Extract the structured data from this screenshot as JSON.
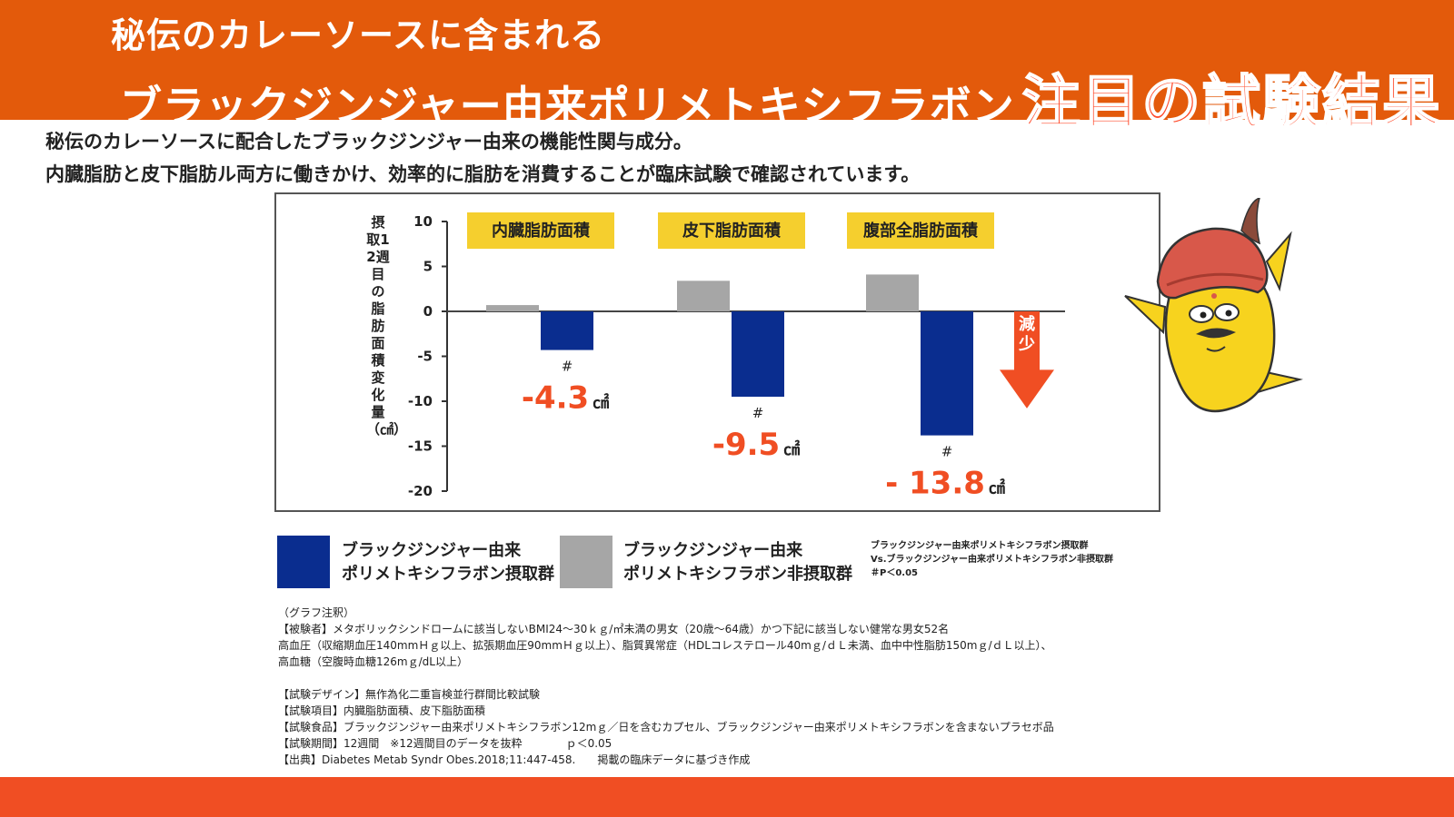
{
  "header": {
    "line1": "秘伝のカレーソースに含まれる",
    "line2": "ブラックジンジャー由来ポリメトキシフラボン",
    "highlight": "注目の試験結果"
  },
  "intro": {
    "line1": "秘伝のカレーソースに配合したブラックジンジャー由来の機能性関与成分。",
    "line2": "内臓脂肪と皮下脂肪ル両方に働きかけ、効率的に脂肪を消費することが臨床試験で確認されています。"
  },
  "colors": {
    "header_bg": "#e35a0b",
    "accent": "#f04e23",
    "treated": "#0a2d8f",
    "control": "#a6a6a6",
    "category_box": "#f5cf2e",
    "value_text": "#f04e23"
  },
  "chart_data": {
    "type": "bar",
    "ylabel": "摂取12週目の脂肪面積変化量（㎠）",
    "ylim": [
      -20,
      10
    ],
    "yticks": [
      10,
      5,
      0,
      -5,
      -10,
      -15,
      -20
    ],
    "categories": [
      "内臓脂肪面積",
      "皮下脂肪面積",
      "腹部全脂肪面積"
    ],
    "series": [
      {
        "name": "ブラックジンジャー由来ポリメトキシフラボン非摂取群",
        "values": [
          0.7,
          3.4,
          4.1
        ]
      },
      {
        "name": "ブラックジンジャー由来ポリメトキシフラボン摂取群",
        "values": [
          -4.3,
          -9.5,
          -13.8
        ]
      }
    ],
    "value_labels": [
      "-4.3",
      "-9.5",
      "- 13.8"
    ],
    "unit": "㎠",
    "sig_mark": "#",
    "arrow_label": "減少"
  },
  "legend": {
    "treated_line1": "ブラックジンジャー由来",
    "treated_line2": "ポリメトキシフラボン摂取群",
    "control_line1": "ブラックジンジャー由来",
    "control_line2": "ポリメトキシフラボン非摂取群",
    "note_line1": "ブラックジンジャー由来ポリメトキシフラボン摂取群",
    "note_line2": "Vs.ブラックジンジャー由来ポリメトキシフラボン非摂取群",
    "note_line3": "＃P＜0.05"
  },
  "notes": [
    "（グラフ注釈）",
    "【被験者】メタボリックシンドロームに該当しないBMI24～30ｋｇ/㎡未満の男女（20歳～64歳）かつ下記に該当しない健常な男女52名",
    "高血圧（収縮期血圧140mmＨｇ以上、拡張期血圧90mmＨｇ以上）、脂質異常症（HDLコレステロール40mｇ/ｄＬ未満、血中中性脂肪150mｇ/ｄＬ以上）、",
    "高血糖（空腹時血糖126mｇ/dL以上）",
    "",
    "【試験デザイン】無作為化二重盲検並行群間比較試験",
    "【試験項目】内臓脂肪面積、皮下脂肪面積",
    "【試験食品】ブラックジンジャー由来ポリメトキシフラボン12mｇ／日を含むカプセル、ブラックジンジャー由来ポリメトキシフラボンを含まないプラセボ品",
    "【試験期間】12週間　※12週間目のデータを抜粋　　　　ｐ＜0.05",
    "【出典】Diabetes Metab Syndr Obes.2018;11:447-458.　　掲載の臨床データに基づき作成"
  ]
}
